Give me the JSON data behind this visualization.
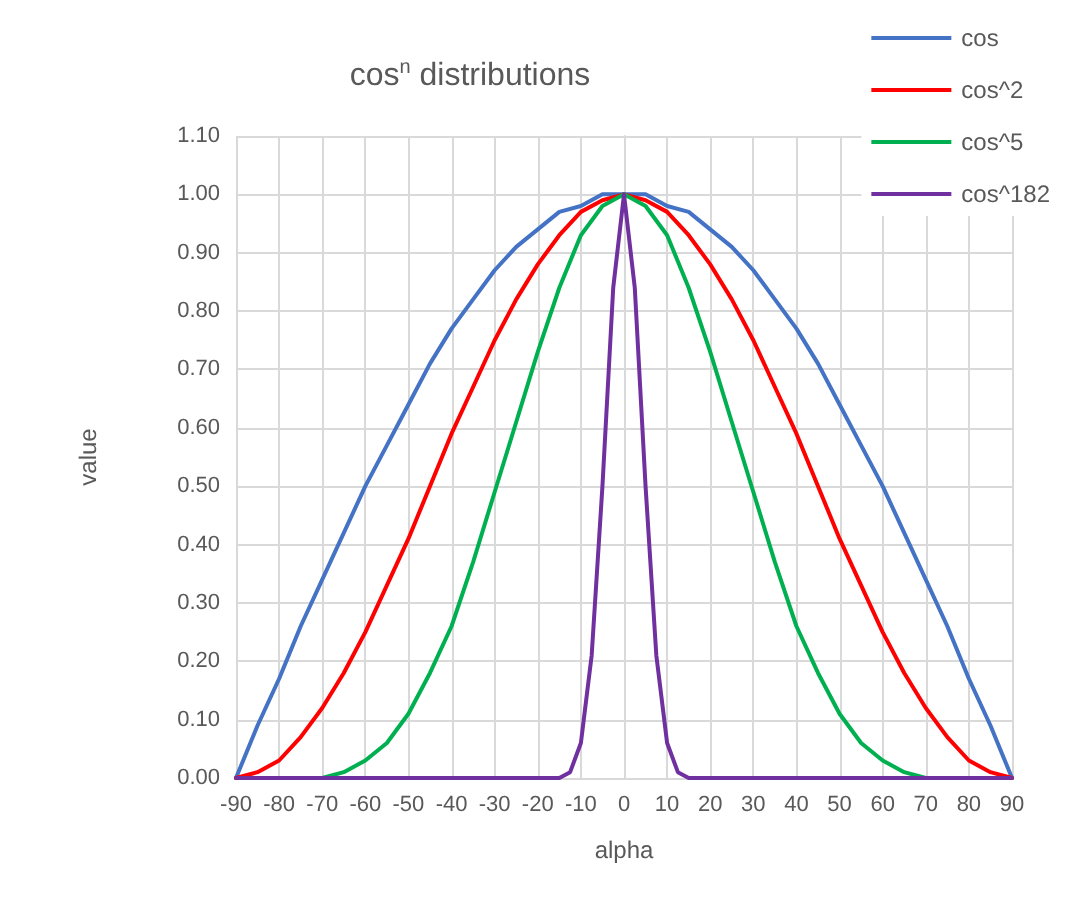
{
  "chart_data": {
    "type": "line",
    "title": "cos$^{n}$ distributions",
    "xlabel": "alpha",
    "ylabel": "value",
    "x": [
      -90,
      -85,
      -80,
      -75,
      -70,
      -65,
      -60,
      -55,
      -50,
      -45,
      -40,
      -35,
      -30,
      -25,
      -20,
      -15,
      -10,
      -5,
      0,
      5,
      10,
      15,
      20,
      25,
      30,
      35,
      40,
      45,
      50,
      55,
      60,
      65,
      70,
      75,
      80,
      85,
      90
    ],
    "series": [
      {
        "name": "cos",
        "color": "#4472c4",
        "values": [
          0,
          0.09,
          0.17,
          0.26,
          0.34,
          0.42,
          0.5,
          0.57,
          0.64,
          0.71,
          0.77,
          0.82,
          0.87,
          0.91,
          0.94,
          0.97,
          0.98,
          1.0,
          1.0,
          1.0,
          0.98,
          0.97,
          0.94,
          0.91,
          0.87,
          0.82,
          0.77,
          0.71,
          0.64,
          0.57,
          0.5,
          0.42,
          0.34,
          0.26,
          0.17,
          0.09,
          0
        ]
      },
      {
        "name": "cos^2",
        "color": "#ff0000",
        "values": [
          0,
          0.01,
          0.03,
          0.07,
          0.12,
          0.18,
          0.25,
          0.33,
          0.41,
          0.5,
          0.59,
          0.67,
          0.75,
          0.82,
          0.88,
          0.93,
          0.97,
          0.99,
          1.0,
          0.99,
          0.97,
          0.93,
          0.88,
          0.82,
          0.75,
          0.67,
          0.59,
          0.5,
          0.41,
          0.33,
          0.25,
          0.18,
          0.12,
          0.07,
          0.03,
          0.01,
          0
        ]
      },
      {
        "name": "cos^5",
        "color": "#00b050",
        "values": [
          null,
          null,
          null,
          0,
          0,
          0.01,
          0.03,
          0.06,
          0.11,
          0.18,
          0.26,
          0.37,
          0.49,
          0.61,
          0.73,
          0.84,
          0.93,
          0.98,
          1.0,
          0.98,
          0.93,
          0.84,
          0.73,
          0.61,
          0.49,
          0.37,
          0.26,
          0.18,
          0.11,
          0.06,
          0.03,
          0.01,
          0,
          0,
          null,
          null,
          null
        ]
      },
      {
        "name": "cos^182",
        "color": "#7030a0",
        "x": [
          -90,
          -15,
          -12.5,
          -10,
          -7.5,
          -5,
          -2.5,
          0,
          2.5,
          5,
          7.5,
          10,
          12.5,
          15,
          90
        ],
        "values": [
          0,
          0,
          0.01,
          0.06,
          0.21,
          0.5,
          0.84,
          1.0,
          0.84,
          0.5,
          0.21,
          0.06,
          0.01,
          0,
          0
        ]
      }
    ],
    "xlim": [
      -90,
      90
    ],
    "xticks": [
      -90,
      -80,
      -70,
      -60,
      -50,
      -40,
      -30,
      -20,
      -10,
      0,
      10,
      20,
      30,
      40,
      50,
      60,
      70,
      80,
      90
    ],
    "ylim": [
      0,
      1.1
    ],
    "yticks": [
      {
        "value": 0,
        "label": "0.00"
      },
      {
        "value": 0.1,
        "label": "0.10"
      },
      {
        "value": 0.2,
        "label": "0.20"
      },
      {
        "value": 0.3,
        "label": "0.30"
      },
      {
        "value": 0.4,
        "label": "0.40"
      },
      {
        "value": 0.5,
        "label": "0.50"
      },
      {
        "value": 0.6,
        "label": "0.60"
      },
      {
        "value": 0.7,
        "label": "0.70"
      },
      {
        "value": 0.8,
        "label": "0.80"
      },
      {
        "value": 0.9,
        "label": "0.90"
      },
      {
        "value": 1.0,
        "label": "1.00"
      },
      {
        "value": 1.1,
        "label": "1.10"
      }
    ],
    "grid": true,
    "legend": "top right",
    "marker": "none",
    "line_style": "solid"
  }
}
